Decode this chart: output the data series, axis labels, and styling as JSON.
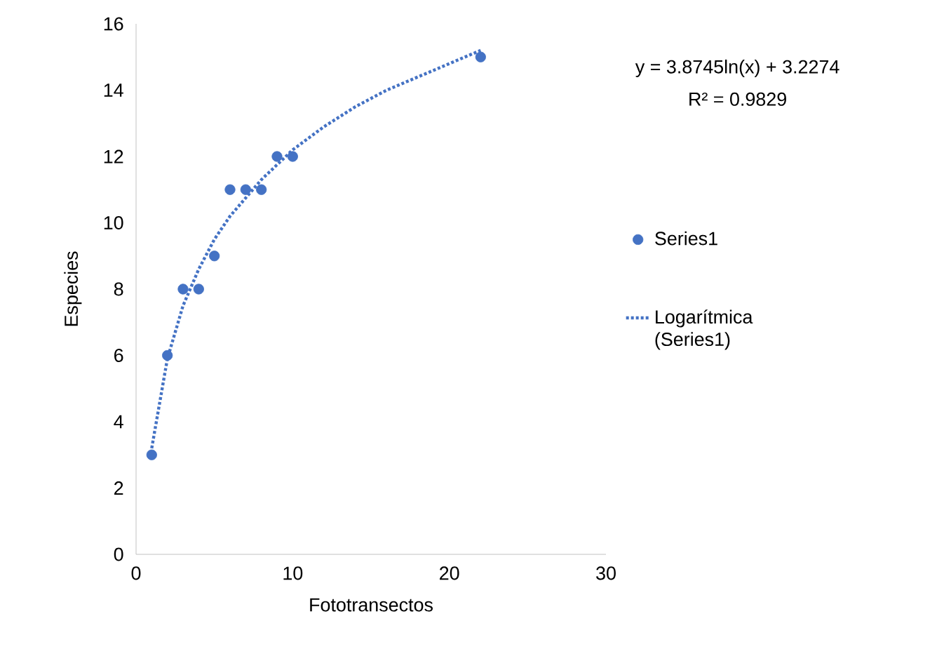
{
  "chart_data": {
    "type": "scatter",
    "xlabel": "Fototransectos",
    "ylabel": "Especies",
    "xlim": [
      0,
      30
    ],
    "ylim": [
      0,
      16
    ],
    "xticks": [
      0,
      10,
      20,
      30
    ],
    "yticks": [
      0,
      2,
      4,
      6,
      8,
      10,
      12,
      14,
      16
    ],
    "legend": "right",
    "grid": false,
    "series": [
      {
        "name": "Series1",
        "color": "#4472c4",
        "marker": "circle",
        "x": [
          1,
          2,
          3,
          4,
          5,
          6,
          7,
          8,
          9,
          10,
          22
        ],
        "values": [
          3,
          6,
          8,
          8,
          9,
          11,
          11,
          11,
          12,
          12,
          15
        ]
      },
      {
        "name": "Logarítmica (Series1)",
        "type": "line",
        "color": "#4472c4",
        "line_style": "dotted",
        "marker": "none",
        "x": [
          1,
          2,
          3,
          4,
          5,
          6,
          8,
          10,
          12,
          14,
          16,
          18,
          20,
          22
        ],
        "values": [
          3.2,
          5.9,
          7.5,
          8.6,
          9.5,
          10.2,
          11.3,
          12.2,
          12.9,
          13.5,
          14.0,
          14.4,
          14.8,
          15.2
        ]
      }
    ],
    "annotations": [
      "y = 3.8745ln(x) + 3.2274",
      "R² = 0.9829"
    ]
  }
}
